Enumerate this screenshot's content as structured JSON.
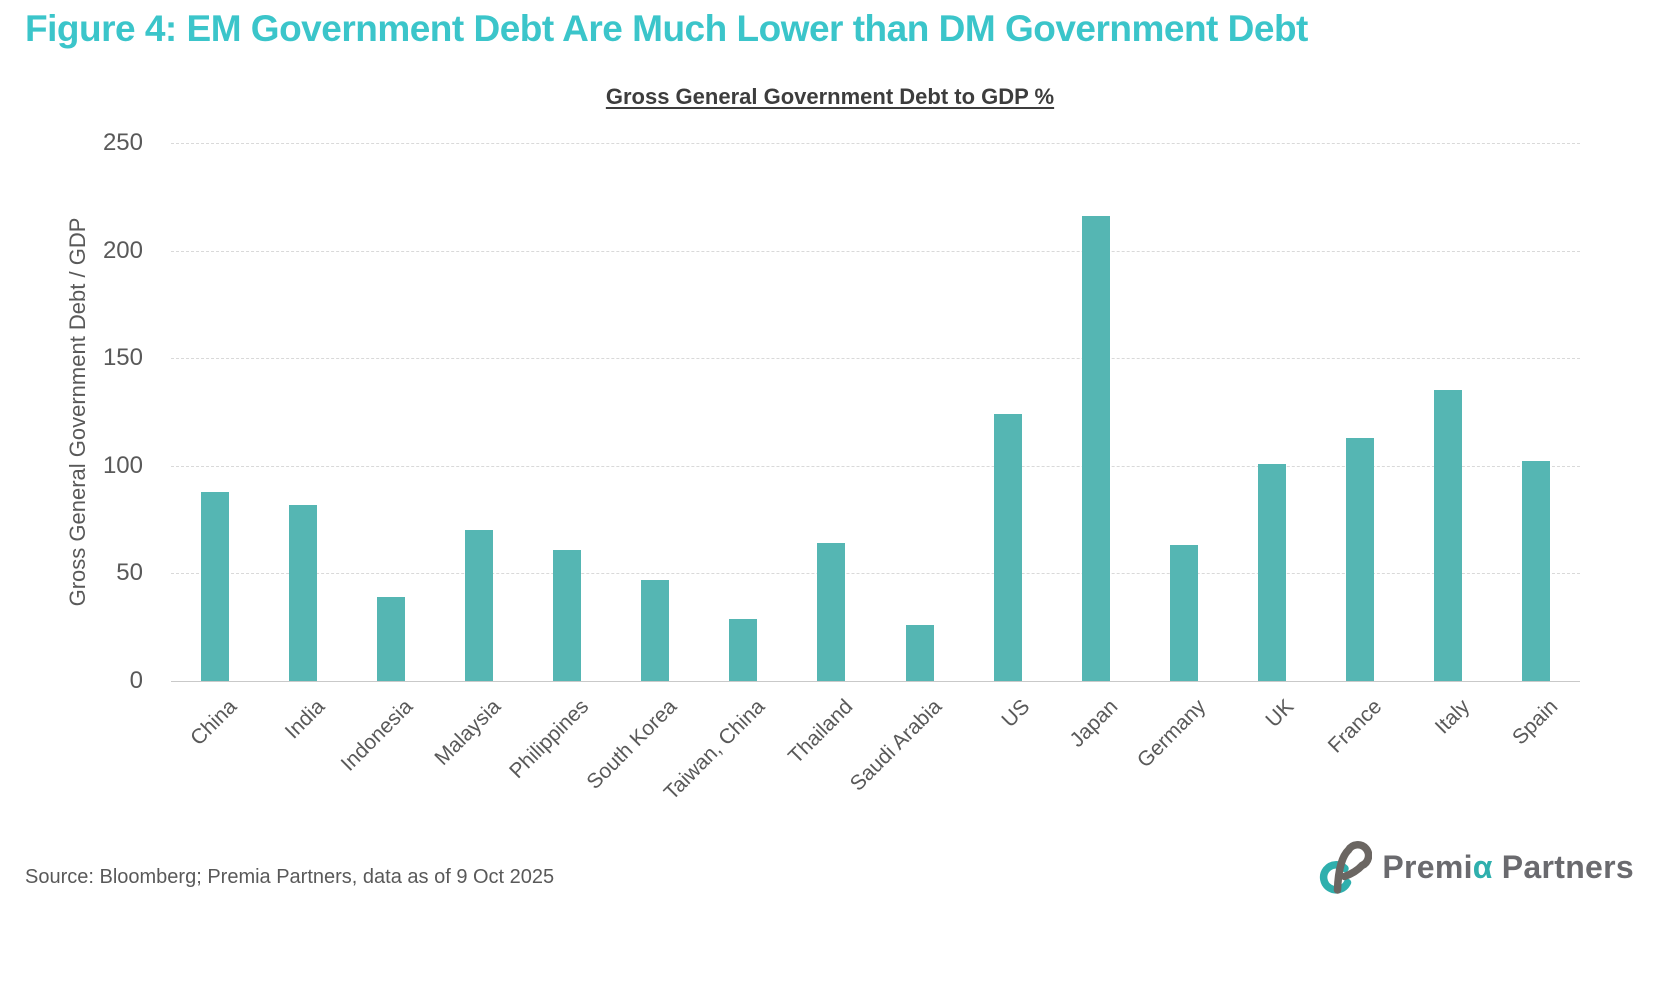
{
  "figure_title": "Figure 4: EM Government Debt Are Much Lower than DM Government Debt",
  "chart_data": {
    "type": "bar",
    "title": "Gross General Government Debt to GDP %",
    "ylabel": "Gross General Government Debt / GDP",
    "categories": [
      "China",
      "India",
      "Indonesia",
      "Malaysia",
      "Philippines",
      "South Korea",
      "Taiwan, China",
      "Thailand",
      "Saudi Arabia",
      "US",
      "Japan",
      "Germany",
      "UK",
      "France",
      "Italy",
      "Spain"
    ],
    "values": [
      88,
      82,
      39,
      70,
      61,
      47,
      29,
      64,
      26,
      124,
      216,
      63,
      101,
      113,
      135,
      102
    ],
    "ylim": [
      0,
      250
    ],
    "yticks": [
      0,
      50,
      100,
      150,
      200,
      250
    ],
    "grid": "horizontal-dashed",
    "legend": "none",
    "x_label_rotation_deg": -45,
    "bar_color": "#55b6b3"
  },
  "footer": {
    "source": "Source: Bloomberg; Premia Partners, data as of 9 Oct 2025"
  },
  "logo": {
    "text_primary": "Premi",
    "text_alpha": "α",
    "text_secondary": "Partners"
  },
  "colors": {
    "figure_title": "#3bc5ca",
    "bar": "#55b6b3",
    "axis_text": "#595959",
    "gridline": "#d9d9d9",
    "axis_line": "#c9c9c9",
    "logo_gray": "#6a6a6e",
    "logo_teal": "#2fafad"
  }
}
